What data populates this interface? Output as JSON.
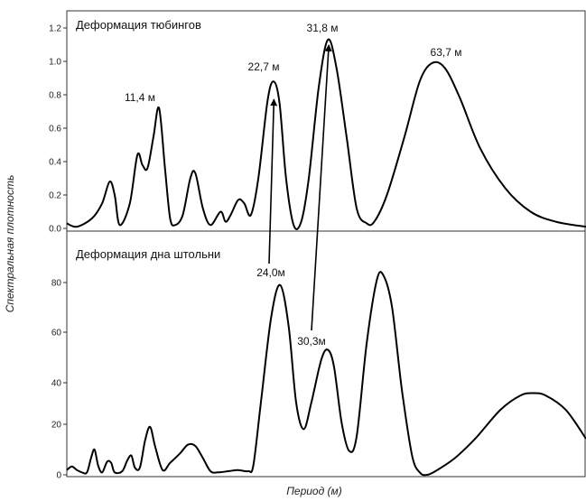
{
  "chart_data": [
    {
      "type": "line",
      "title": "Деформация тюбингов",
      "xlabel": "Период (м)",
      "ylabel": "Спектральная плотность",
      "ylim": [
        0,
        1.25
      ],
      "yticks": [
        "0.0",
        "0.2",
        "0.4",
        "0.6",
        "0.8",
        "1.0",
        "1.2"
      ],
      "grid": false,
      "series": [
        {
          "values": [
            [
              0,
              0.03
            ],
            [
              2,
              0.01
            ],
            [
              5,
              0.06
            ],
            [
              7,
              0.15
            ],
            [
              8.5,
              0.28
            ],
            [
              9.5,
              0.2
            ],
            [
              10.5,
              0.02
            ],
            [
              12.5,
              0.15
            ],
            [
              14,
              0.44
            ],
            [
              15,
              0.38
            ],
            [
              16,
              0.36
            ],
            [
              17.2,
              0.55
            ],
            [
              18.3,
              0.72
            ],
            [
              19.5,
              0.35
            ],
            [
              20.5,
              0.06
            ],
            [
              21.5,
              0.02
            ],
            [
              23,
              0.08
            ],
            [
              24.5,
              0.3
            ],
            [
              25.5,
              0.33
            ],
            [
              27,
              0.12
            ],
            [
              28.5,
              0.02
            ],
            [
              30.5,
              0.1
            ],
            [
              31.5,
              0.04
            ],
            [
              32.5,
              0.08
            ],
            [
              34,
              0.17
            ],
            [
              35.2,
              0.15
            ],
            [
              36.5,
              0.08
            ],
            [
              38,
              0.3
            ],
            [
              39.8,
              0.76
            ],
            [
              41,
              0.88
            ],
            [
              42.2,
              0.75
            ],
            [
              43.5,
              0.3
            ],
            [
              45,
              0.02
            ],
            [
              46.5,
              0.04
            ],
            [
              48,
              0.3
            ],
            [
              50,
              0.85
            ],
            [
              51.8,
              1.13
            ],
            [
              53.5,
              0.96
            ],
            [
              55.5,
              0.55
            ],
            [
              57.5,
              0.12
            ],
            [
              59.5,
              0.03
            ],
            [
              61,
              0.04
            ],
            [
              63.5,
              0.2
            ],
            [
              67,
              0.55
            ],
            [
              70,
              0.88
            ],
            [
              72.5,
              0.99
            ],
            [
              75,
              0.96
            ],
            [
              78,
              0.78
            ],
            [
              82,
              0.48
            ],
            [
              87,
              0.24
            ],
            [
              92,
              0.1
            ],
            [
              97,
              0.04
            ],
            [
              103,
              0.01
            ]
          ]
        }
      ],
      "annotations": [
        {
          "text": "11,4 м",
          "x": 18.3,
          "y": 0.72
        },
        {
          "text": "22,7 м",
          "x": 41,
          "y": 0.88
        },
        {
          "text": "31,8 м",
          "x": 51.8,
          "y": 1.13
        },
        {
          "text": "63,7 м",
          "x": 72.5,
          "y": 0.99
        }
      ]
    },
    {
      "type": "line",
      "title": "Деформация дна штольни",
      "xlabel": "Период (м)",
      "ylabel": "Спектральная плотность",
      "ylim": [
        0,
        93
      ],
      "yticks": [
        "0",
        "20",
        "40",
        "60",
        "80"
      ],
      "grid": false,
      "series": [
        {
          "values": [
            [
              0,
              2
            ],
            [
              1,
              3.5
            ],
            [
              2,
              2
            ],
            [
              3,
              1
            ],
            [
              4,
              1
            ],
            [
              4.8,
              7
            ],
            [
              5.5,
              10.5
            ],
            [
              6.2,
              4
            ],
            [
              7,
              1
            ],
            [
              8,
              5.5
            ],
            [
              8.8,
              5
            ],
            [
              9.5,
              1
            ],
            [
              11,
              1.5
            ],
            [
              12,
              6
            ],
            [
              12.8,
              8
            ],
            [
              13.5,
              3
            ],
            [
              14.5,
              3
            ],
            [
              15.5,
              14
            ],
            [
              16.5,
              20
            ],
            [
              17.5,
              12
            ],
            [
              19,
              2
            ],
            [
              20.5,
              5
            ],
            [
              22.5,
              9
            ],
            [
              24,
              12.5
            ],
            [
              25.5,
              12
            ],
            [
              27,
              7
            ],
            [
              28.5,
              1.5
            ],
            [
              30,
              1
            ],
            [
              32,
              1.5
            ],
            [
              34,
              2
            ],
            [
              36,
              1.5
            ],
            [
              37,
              4
            ],
            [
              38.5,
              30
            ],
            [
              40.5,
              65
            ],
            [
              42.3,
              79
            ],
            [
              44,
              62
            ],
            [
              45.5,
              30
            ],
            [
              47,
              19
            ],
            [
              48.5,
              30
            ],
            [
              50.5,
              48
            ],
            [
              51.8,
              52
            ],
            [
              53,
              45
            ],
            [
              54.5,
              22
            ],
            [
              56,
              10
            ],
            [
              57.5,
              16
            ],
            [
              59.5,
              55
            ],
            [
              61.5,
              81
            ],
            [
              62.8,
              83
            ],
            [
              64.5,
              70
            ],
            [
              66.5,
              35
            ],
            [
              68.5,
              8
            ],
            [
              70,
              1
            ],
            [
              71.5,
              0
            ],
            [
              73.5,
              2
            ],
            [
              77,
              7
            ],
            [
              81,
              15
            ],
            [
              86,
              27
            ],
            [
              90,
              33
            ],
            [
              92.5,
              34
            ],
            [
              95,
              33
            ],
            [
              99,
              27
            ],
            [
              103,
              15
            ]
          ]
        }
      ],
      "annotations": [
        {
          "text": "24,0м",
          "x": 42.3,
          "y": 79
        },
        {
          "text": "30,3м",
          "x": 51.8,
          "y": 52
        }
      ]
    }
  ]
}
